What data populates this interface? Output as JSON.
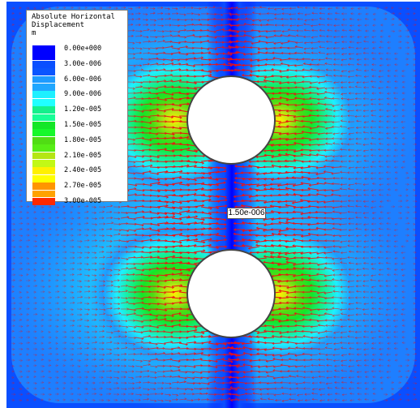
{
  "legend": {
    "title_line1": "Absolute Horizontal",
    "title_line2": "Displacement",
    "unit": "m",
    "entries": [
      {
        "label": "0.00e+000",
        "color": "#0000ff"
      },
      {
        "label": "3.00e-006",
        "color": "#0a4fff"
      },
      {
        "label": "6.00e-006",
        "color": "#1e9bff"
      },
      {
        "label": "9.00e-006",
        "color": "#1ef0ff"
      },
      {
        "label": "1.20e-005",
        "color": "#14f08c"
      },
      {
        "label": "1.50e-005",
        "color": "#14e628"
      },
      {
        "label": "1.80e-005",
        "color": "#50dc14"
      },
      {
        "label": "2.10e-005",
        "color": "#b4e614"
      },
      {
        "label": "2.40e-005",
        "color": "#fff000"
      },
      {
        "label": "2.70e-005",
        "color": "#ff9600"
      },
      {
        "label": "3.00e-005",
        "color": "#ff2800"
      }
    ]
  },
  "probe_label": "1.50e-006",
  "colors": {
    "vector": "#ee1111",
    "hole_fill": "#ffffff",
    "hole_edge": "#444444"
  }
}
